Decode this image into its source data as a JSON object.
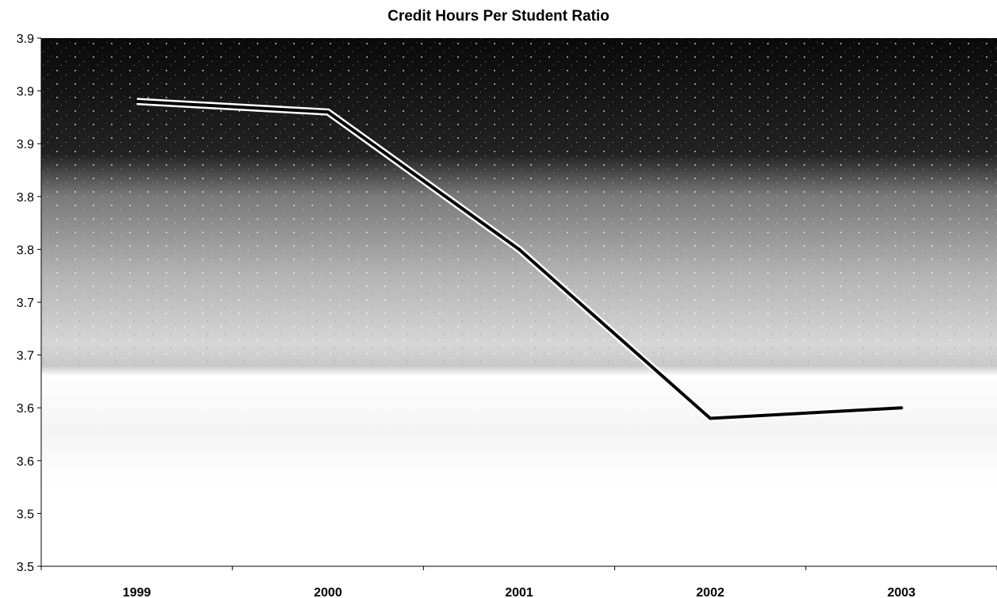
{
  "chart_data": {
    "type": "line",
    "title": "Credit Hours Per Student Ratio",
    "xlabel": "",
    "ylabel": "",
    "categories": [
      "1999",
      "2000",
      "2001",
      "2002",
      "2003"
    ],
    "series": [
      {
        "values": [
          3.89,
          3.88,
          3.75,
          3.59,
          3.6
        ]
      }
    ],
    "y_tick_labels": [
      "3.5",
      "3.5",
      "3.6",
      "3.6",
      "3.7",
      "3.7",
      "3.8",
      "3.8",
      "3.9",
      "3.9"
    ],
    "ylim": [
      3.45,
      3.95
    ],
    "grid": false,
    "legend": "none",
    "line_color": "#000000",
    "line_highlight_color": "#ffffff"
  }
}
